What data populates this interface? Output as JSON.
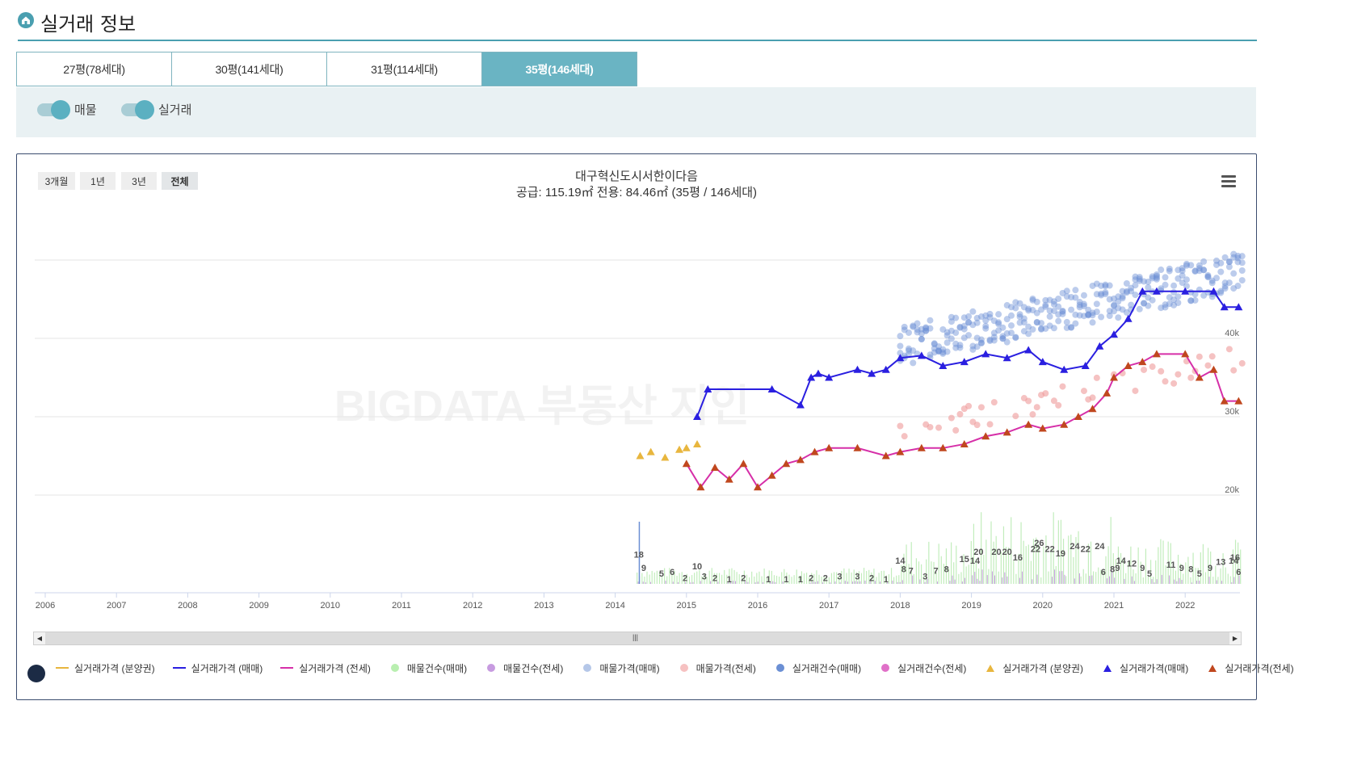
{
  "header": {
    "title": "실거래 정보",
    "icon": "home-icon"
  },
  "tabs": [
    {
      "label": "27평(78세대)",
      "active": false
    },
    {
      "label": "30평(141세대)",
      "active": false
    },
    {
      "label": "31평(114세대)",
      "active": false
    },
    {
      "label": "35평(146세대)",
      "active": true
    }
  ],
  "toggles": [
    {
      "label": "매물",
      "on": true
    },
    {
      "label": "실거래",
      "on": true
    }
  ],
  "range_buttons": [
    "3개월",
    "1년",
    "3년",
    "전체"
  ],
  "selected_range": "전체",
  "watermark": "BIGDATA 부동산 지인",
  "colors": {
    "accent": "#6ab4c3",
    "sale_line": "#2a1fe0",
    "jeonse_line": "#d62fa8",
    "presale": "#e8b63e",
    "listing_sale": "#6b8fd4",
    "listing_jeonse": "#ef9a9a",
    "volume_sale": "#a8e6a0",
    "volume_jeonse": "#c79be0",
    "jeonse_marker": "#c0471e"
  },
  "chart_data": {
    "type": "line",
    "title": "대구혁신도시서한이다음",
    "subtitle": "공급: 115.19㎡ 전용: 84.46㎡ (35평 / 146세대)",
    "x_ticks": [
      "2006",
      "2007",
      "2008",
      "2009",
      "2010",
      "2011",
      "2012",
      "2013",
      "2014",
      "2015",
      "2016",
      "2017",
      "2018",
      "2019",
      "2020",
      "2021",
      "2022"
    ],
    "y_ticks": [
      "20k",
      "30k",
      "40k"
    ],
    "ylim": [
      8000,
      50000
    ],
    "series": [
      {
        "name": "실거래가격 (분양권)",
        "x": [
          2014.35,
          2014.5,
          2014.7,
          2014.9,
          2015.0,
          2015.15
        ],
        "values": [
          25000,
          25500,
          24800,
          25800,
          26000,
          26500
        ]
      },
      {
        "name": "실거래가격 (매매)",
        "x": [
          2015.15,
          2015.3,
          2016.2,
          2016.6,
          2016.75,
          2016.85,
          2017.0,
          2017.4,
          2017.6,
          2017.8,
          2018.0,
          2018.3,
          2018.6,
          2018.9,
          2019.2,
          2019.5,
          2019.8,
          2020.0,
          2020.3,
          2020.6,
          2020.8,
          2021.0,
          2021.2,
          2021.4,
          2021.6,
          2022.0,
          2022.4,
          2022.55,
          2022.75
        ],
        "values": [
          30000,
          33500,
          33500,
          31500,
          35000,
          35500,
          35000,
          36000,
          35500,
          36000,
          37500,
          37800,
          36500,
          37000,
          38000,
          37500,
          38500,
          37000,
          36000,
          36500,
          39000,
          40500,
          42500,
          46000,
          46000,
          46000,
          46000,
          44000,
          44000
        ]
      },
      {
        "name": "실거래가격 (전세)",
        "x": [
          2015.0,
          2015.2,
          2015.4,
          2015.6,
          2015.8,
          2016.0,
          2016.2,
          2016.4,
          2016.6,
          2016.8,
          2017.0,
          2017.4,
          2017.8,
          2018.0,
          2018.3,
          2018.6,
          2018.9,
          2019.2,
          2019.5,
          2019.8,
          2020.0,
          2020.3,
          2020.5,
          2020.7,
          2020.9,
          2021.0,
          2021.2,
          2021.4,
          2021.6,
          2022.0,
          2022.2,
          2022.4,
          2022.55,
          2022.75
        ],
        "values": [
          24000,
          21000,
          23500,
          22000,
          24000,
          21000,
          22500,
          24000,
          24500,
          25500,
          26000,
          26000,
          25000,
          25500,
          26000,
          26000,
          26500,
          27500,
          28000,
          29000,
          28500,
          29000,
          30000,
          31000,
          33000,
          35000,
          36500,
          37000,
          38000,
          38000,
          35000,
          36000,
          32000,
          32000
        ]
      }
    ],
    "volume_labels": [
      {
        "x": 2014.33,
        "label": "18"
      },
      {
        "x": 2014.4,
        "label": "9"
      },
      {
        "x": 2014.65,
        "label": "5"
      },
      {
        "x": 2014.8,
        "label": "6"
      },
      {
        "x": 2014.98,
        "label": "2"
      },
      {
        "x": 2015.15,
        "label": "10"
      },
      {
        "x": 2015.25,
        "label": "3"
      },
      {
        "x": 2015.4,
        "label": "2"
      },
      {
        "x": 2015.6,
        "label": "1"
      },
      {
        "x": 2015.8,
        "label": "2"
      },
      {
        "x": 2016.15,
        "label": "1"
      },
      {
        "x": 2016.4,
        "label": "1"
      },
      {
        "x": 2016.6,
        "label": "1"
      },
      {
        "x": 2016.75,
        "label": "2"
      },
      {
        "x": 2016.95,
        "label": "2"
      },
      {
        "x": 2017.15,
        "label": "3"
      },
      {
        "x": 2017.4,
        "label": "3"
      },
      {
        "x": 2017.6,
        "label": "2"
      },
      {
        "x": 2017.8,
        "label": "1"
      },
      {
        "x": 2018.0,
        "label": "14"
      },
      {
        "x": 2018.05,
        "label": "8"
      },
      {
        "x": 2018.15,
        "label": "7"
      },
      {
        "x": 2018.35,
        "label": "3"
      },
      {
        "x": 2018.5,
        "label": "7"
      },
      {
        "x": 2018.65,
        "label": "8"
      },
      {
        "x": 2018.9,
        "label": "15"
      },
      {
        "x": 2019.05,
        "label": "14"
      },
      {
        "x": 2019.1,
        "label": "20"
      },
      {
        "x": 2019.35,
        "label": "20"
      },
      {
        "x": 2019.5,
        "label": "20"
      },
      {
        "x": 2019.65,
        "label": "16"
      },
      {
        "x": 2019.9,
        "label": "22"
      },
      {
        "x": 2019.95,
        "label": "26"
      },
      {
        "x": 2020.1,
        "label": "22"
      },
      {
        "x": 2020.25,
        "label": "19"
      },
      {
        "x": 2020.45,
        "label": "24"
      },
      {
        "x": 2020.6,
        "label": "22"
      },
      {
        "x": 2020.8,
        "label": "24"
      },
      {
        "x": 2021.1,
        "label": "14"
      },
      {
        "x": 2020.85,
        "label": "6"
      },
      {
        "x": 2020.98,
        "label": "8"
      },
      {
        "x": 2021.05,
        "label": "9"
      },
      {
        "x": 2021.25,
        "label": "12"
      },
      {
        "x": 2021.4,
        "label": "9"
      },
      {
        "x": 2021.5,
        "label": "5"
      },
      {
        "x": 2021.8,
        "label": "11"
      },
      {
        "x": 2021.95,
        "label": "9"
      },
      {
        "x": 2022.08,
        "label": "8"
      },
      {
        "x": 2022.2,
        "label": "5"
      },
      {
        "x": 2022.35,
        "label": "9"
      },
      {
        "x": 2022.5,
        "label": "13"
      },
      {
        "x": 2022.7,
        "label": "16"
      },
      {
        "x": 2022.68,
        "label": "14"
      },
      {
        "x": 2022.75,
        "label": "6"
      }
    ],
    "legend_position": "bottom",
    "grid": true
  },
  "legend": [
    {
      "label": "실거래가격 (분양권)",
      "symbol": "line",
      "color": "#e8b63e"
    },
    {
      "label": "실거래가격 (매매)",
      "symbol": "line",
      "color": "#2a1fe0"
    },
    {
      "label": "실거래가격 (전세)",
      "symbol": "line",
      "color": "#d62fa8"
    },
    {
      "label": "매물건수(매매)",
      "symbol": "circle",
      "color": "#b9efb0"
    },
    {
      "label": "매물건수(전세)",
      "symbol": "circle",
      "color": "#c79be0"
    },
    {
      "label": "매물가격(매매)",
      "symbol": "circle",
      "color": "#b5c7e8"
    },
    {
      "label": "매물가격(전세)",
      "symbol": "circle",
      "color": "#f6c1c1"
    },
    {
      "label": "실거래건수(매매)",
      "symbol": "circle",
      "color": "#6b8fd4"
    },
    {
      "label": "실거래건수(전세)",
      "symbol": "circle",
      "color": "#e070c8"
    },
    {
      "label": "실거래가격 (분양권)",
      "symbol": "triangle",
      "color": "#e8b63e"
    },
    {
      "label": "실거래가격(매매)",
      "symbol": "triangle",
      "color": "#2a1fe0"
    },
    {
      "label": "실거래가격(전세)",
      "symbol": "triangle",
      "color": "#c0471e"
    }
  ]
}
